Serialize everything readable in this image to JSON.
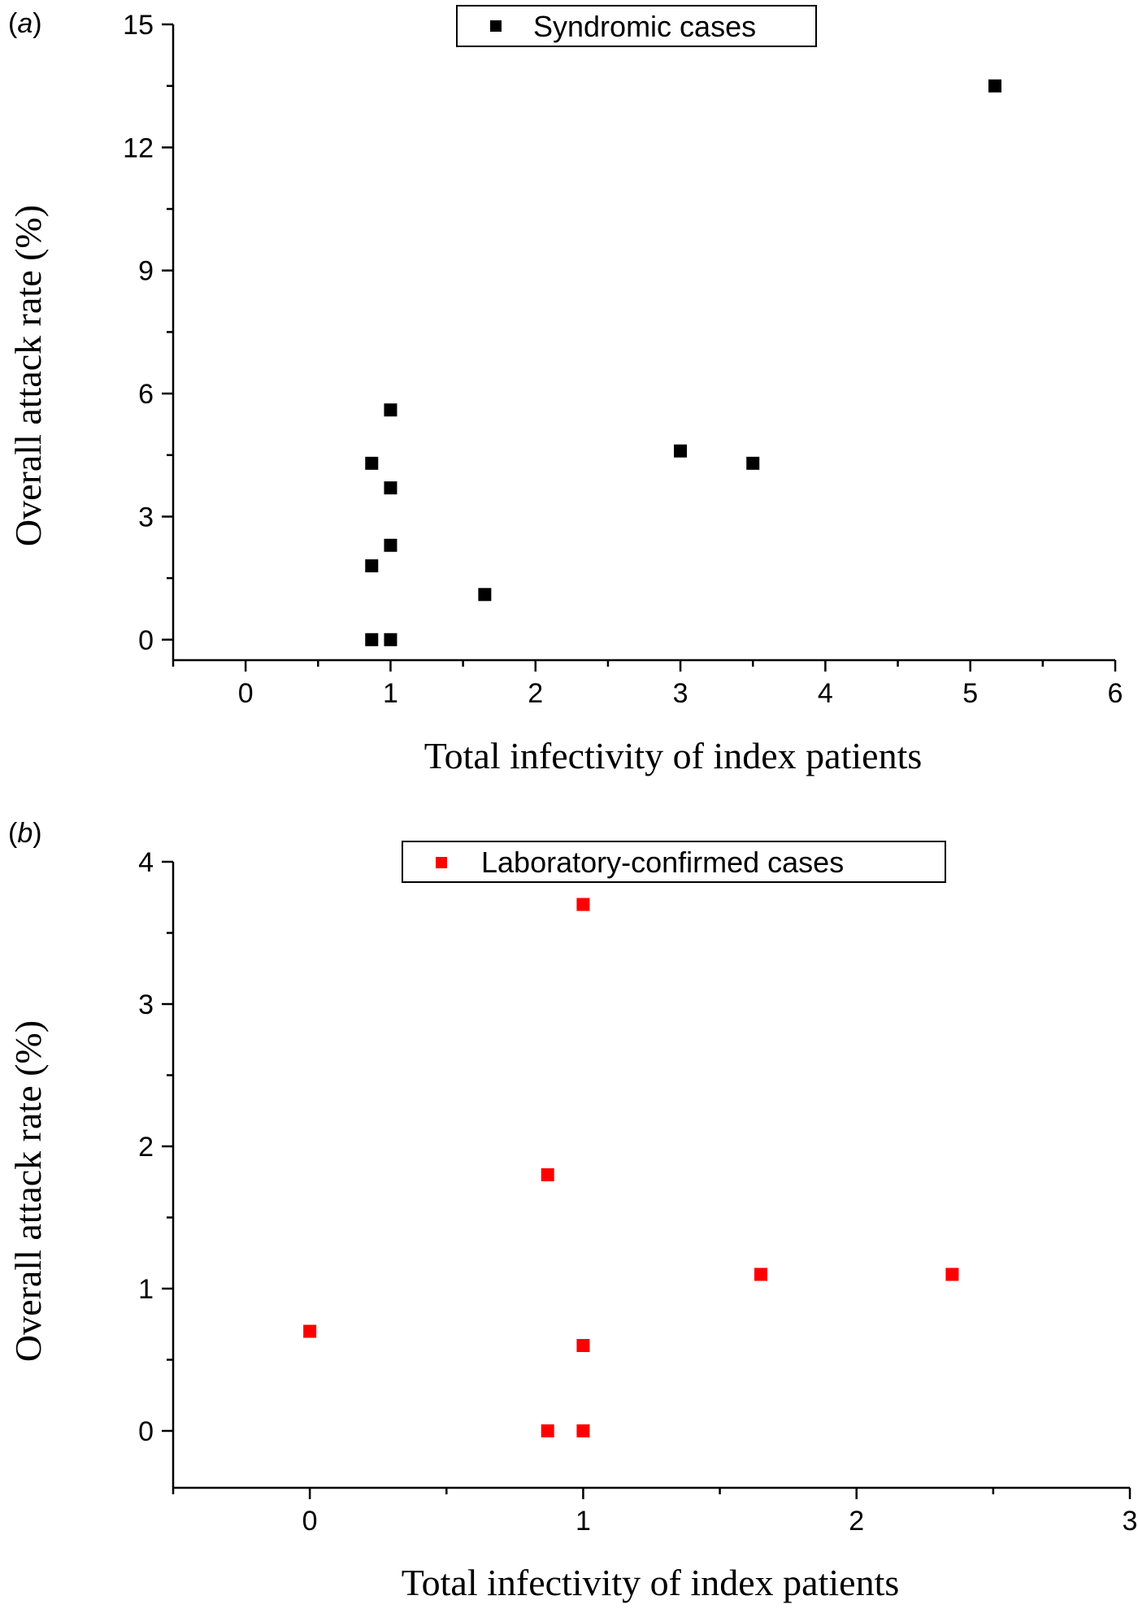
{
  "chart_data": [
    {
      "type": "scatter",
      "panel_label": "(a)",
      "panel_letter": "a",
      "legend": "Syndromic cases",
      "xlabel": "Total infectivity of index patients",
      "ylabel": "Overall attack rate (%)",
      "xlim": [
        -0.5,
        6
      ],
      "ylim": [
        -0.5,
        15
      ],
      "xticks": [
        0,
        1,
        2,
        3,
        4,
        5,
        6
      ],
      "yticks": [
        0,
        3,
        6,
        9,
        12,
        15
      ],
      "marker_color": "#000000",
      "series": [
        {
          "name": "Syndromic cases",
          "points": [
            {
              "x": 0.87,
              "y": 0
            },
            {
              "x": 1.0,
              "y": 0
            },
            {
              "x": 0.87,
              "y": 1.8
            },
            {
              "x": 1.0,
              "y": 2.3
            },
            {
              "x": 1.0,
              "y": 3.7
            },
            {
              "x": 0.87,
              "y": 4.3
            },
            {
              "x": 1.0,
              "y": 5.6
            },
            {
              "x": 1.65,
              "y": 1.1
            },
            {
              "x": 3.0,
              "y": 4.6
            },
            {
              "x": 3.5,
              "y": 4.3
            },
            {
              "x": 5.17,
              "y": 13.5
            }
          ]
        }
      ]
    },
    {
      "type": "scatter",
      "panel_label": "(b)",
      "panel_letter": "b",
      "legend": "Laboratory-confirmed cases",
      "xlabel": "Total infectivity of index patients",
      "ylabel": "Overall attack rate (%)",
      "xlim": [
        -0.5,
        3
      ],
      "ylim": [
        -0.4,
        4
      ],
      "xticks": [
        0,
        1,
        2,
        3
      ],
      "yticks": [
        0,
        1,
        2,
        3,
        4
      ],
      "marker_color": "#ff0000",
      "series": [
        {
          "name": "Laboratory-confirmed cases",
          "points": [
            {
              "x": 0.0,
              "y": 0.7
            },
            {
              "x": 0.87,
              "y": 1.8
            },
            {
              "x": 0.87,
              "y": 0
            },
            {
              "x": 1.0,
              "y": 0
            },
            {
              "x": 1.0,
              "y": 0.6
            },
            {
              "x": 1.0,
              "y": 3.7
            },
            {
              "x": 1.65,
              "y": 1.1
            },
            {
              "x": 2.35,
              "y": 1.1
            }
          ]
        }
      ]
    }
  ]
}
